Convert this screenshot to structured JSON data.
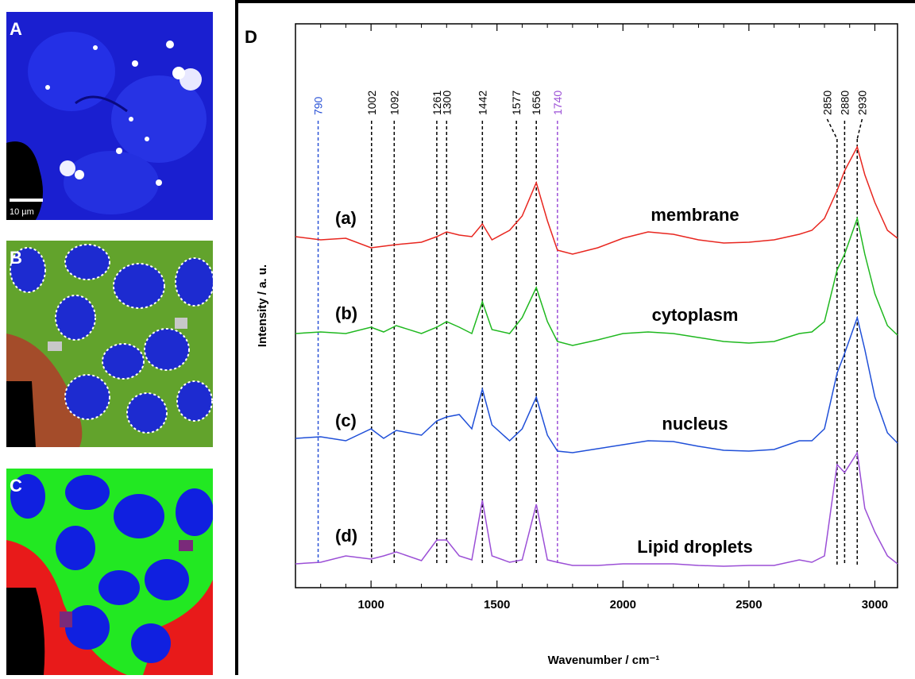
{
  "image_panels": [
    {
      "label": "A",
      "scale_bar": "10 µm"
    },
    {
      "label": "B"
    },
    {
      "label": "C"
    }
  ],
  "chart_data": {
    "type": "line",
    "title": "D",
    "xlabel": "Wavenumber / cm⁻¹",
    "ylabel": "Intensity / a. u.",
    "xlim": [
      700,
      3090
    ],
    "ylim": [
      0,
      71
    ],
    "xticks": [
      1000,
      1500,
      2000,
      2500,
      3000
    ],
    "xminorticks": [
      700,
      800,
      900,
      1100,
      1200,
      1300,
      1400,
      1600,
      1700,
      1800,
      1900,
      2100,
      2200,
      2300,
      2400,
      2600,
      2700,
      2800,
      2900,
      3100
    ],
    "peak_lines": [
      790,
      1002,
      1092,
      1261,
      1300,
      1442,
      1577,
      1656,
      1740,
      2850,
      2880,
      2930
    ],
    "peak_colors": [
      "#2a52d6",
      "#000000",
      "#000000",
      "#000000",
      "#000000",
      "#000000",
      "#000000",
      "#000000",
      "#9b4fd6",
      "#000000",
      "#000000",
      "#000000"
    ],
    "x": [
      700,
      800,
      900,
      1000,
      1050,
      1100,
      1200,
      1261,
      1300,
      1350,
      1400,
      1442,
      1480,
      1550,
      1600,
      1656,
      1700,
      1740,
      1800,
      1900,
      2000,
      2100,
      2200,
      2300,
      2400,
      2500,
      2600,
      2700,
      2750,
      2800,
      2850,
      2880,
      2930,
      2960,
      3000,
      3050,
      3090
    ],
    "series": [
      {
        "tag": "(a)",
        "name": "membrane",
        "color": "#e8261f",
        "values": [
          44.2,
          43.8,
          44,
          42.8,
          43,
          43.2,
          43.5,
          44.2,
          44.8,
          44.4,
          44.2,
          45.8,
          43.8,
          45,
          46.8,
          51,
          46.2,
          42.5,
          42,
          42.8,
          44,
          44.8,
          44.5,
          43.8,
          43.4,
          43.5,
          43.8,
          44.5,
          45,
          46.5,
          50,
          52.5,
          55.5,
          52,
          48.5,
          45,
          44
        ]
      },
      {
        "tag": "(b)",
        "name": "cytoplasm",
        "color": "#1fb81f",
        "values": [
          32,
          32.2,
          32,
          32.8,
          32.2,
          33,
          32,
          32.8,
          33.5,
          32.8,
          32,
          36,
          32.5,
          32,
          34,
          37.8,
          33.5,
          31,
          30.5,
          31.2,
          32,
          32.2,
          32,
          31.5,
          31,
          30.8,
          31,
          32,
          32.2,
          33.5,
          40,
          42,
          46.5,
          42,
          37,
          33,
          31.8
        ]
      },
      {
        "tag": "(c)",
        "name": "nucleus",
        "color": "#1f4fd8",
        "values": [
          18.8,
          19,
          18.5,
          20,
          18.8,
          19.8,
          19.2,
          21,
          21.5,
          21.8,
          20,
          25,
          20.5,
          18.5,
          20,
          24,
          19.2,
          17.2,
          17,
          17.5,
          18,
          18.5,
          18.4,
          17.8,
          17.3,
          17.2,
          17.4,
          18.5,
          18.5,
          20,
          27,
          29.5,
          34,
          30,
          24,
          19.5,
          18.2
        ]
      },
      {
        "tag": "(d)",
        "name": "Lipid droplets",
        "color": "#9b4fd6",
        "values": [
          3,
          3.2,
          4,
          3.6,
          4,
          4.5,
          3.4,
          6,
          6,
          4,
          3.5,
          11,
          4,
          3.2,
          3.5,
          10.5,
          3.5,
          3.2,
          2.8,
          2.8,
          3,
          3,
          3,
          2.8,
          2.7,
          2.8,
          2.8,
          3.5,
          3.2,
          4,
          15.5,
          14.5,
          17,
          10,
          7,
          4,
          3
        ]
      }
    ]
  }
}
